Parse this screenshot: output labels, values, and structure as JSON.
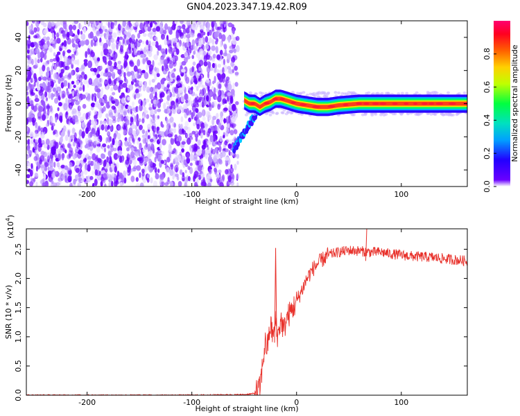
{
  "title": "GN04.2023.347.19.42.R09",
  "chart_data": [
    {
      "type": "heatmap",
      "xlabel": "Height of straight line (km)",
      "ylabel": "Frequency (Hz)",
      "xlim": [
        -258,
        163
      ],
      "ylim": [
        -50,
        50
      ],
      "x_ticks": [
        -200,
        -100,
        0,
        100
      ],
      "y_ticks": [
        -40,
        -20,
        0,
        20,
        40
      ],
      "noise_region_x": [
        -258,
        -60
      ],
      "transition_x": [
        -60,
        -35
      ],
      "signal_track": [
        {
          "x": -50,
          "y": 2
        },
        {
          "x": -45,
          "y": 0
        },
        {
          "x": -40,
          "y": 0
        },
        {
          "x": -35,
          "y": -2
        },
        {
          "x": -30,
          "y": 0
        },
        {
          "x": -25,
          "y": 1
        },
        {
          "x": -20,
          "y": 3
        },
        {
          "x": -15,
          "y": 3
        },
        {
          "x": -10,
          "y": 2
        },
        {
          "x": -5,
          "y": 1
        },
        {
          "x": 0,
          "y": 0
        },
        {
          "x": 10,
          "y": -1
        },
        {
          "x": 20,
          "y": -2
        },
        {
          "x": 30,
          "y": -2
        },
        {
          "x": 40,
          "y": -1
        },
        {
          "x": 60,
          "y": 0
        },
        {
          "x": 80,
          "y": 0
        },
        {
          "x": 100,
          "y": 0
        },
        {
          "x": 120,
          "y": 0
        },
        {
          "x": 140,
          "y": 0
        },
        {
          "x": 163,
          "y": 0
        }
      ],
      "colorbar": {
        "label": "Normalized spectral amplitude",
        "range": [
          0,
          1
        ],
        "ticks": [
          0.0,
          0.2,
          0.4,
          0.6,
          0.8
        ]
      }
    },
    {
      "type": "line",
      "xlabel": "Height of straight line (km)",
      "ylabel": "SNR (10 * v/v)",
      "scale_label": "(x10",
      "scale_exponent": "4",
      "scale_suffix": ")",
      "xlim": [
        -258,
        163
      ],
      "ylim": [
        0,
        2.85
      ],
      "x_ticks": [
        -200,
        -100,
        0,
        100
      ],
      "y_ticks": [
        0.0,
        0.5,
        1.0,
        1.5,
        2.0,
        2.5
      ],
      "color": "#e8302a",
      "series": [
        {
          "x": [
            -258,
            -200,
            -100,
            -50,
            -40,
            -35,
            -32,
            -30,
            -28,
            -25,
            -22,
            -20,
            -18,
            -15,
            -12,
            -10,
            -5,
            0,
            5,
            10,
            15,
            20,
            30,
            40,
            50,
            60,
            70,
            80,
            90,
            100,
            110,
            120,
            130,
            140,
            150,
            163
          ],
          "values": [
            0.0,
            0.0,
            0.0,
            0.01,
            0.03,
            0.12,
            0.6,
            0.9,
            0.8,
            1.2,
            1.0,
            1.3,
            1.0,
            1.3,
            1.1,
            1.3,
            1.45,
            1.6,
            1.8,
            2.0,
            2.15,
            2.25,
            2.4,
            2.45,
            2.48,
            2.47,
            2.45,
            2.45,
            2.42,
            2.4,
            2.38,
            2.37,
            2.36,
            2.34,
            2.32,
            2.3
          ]
        }
      ]
    }
  ]
}
